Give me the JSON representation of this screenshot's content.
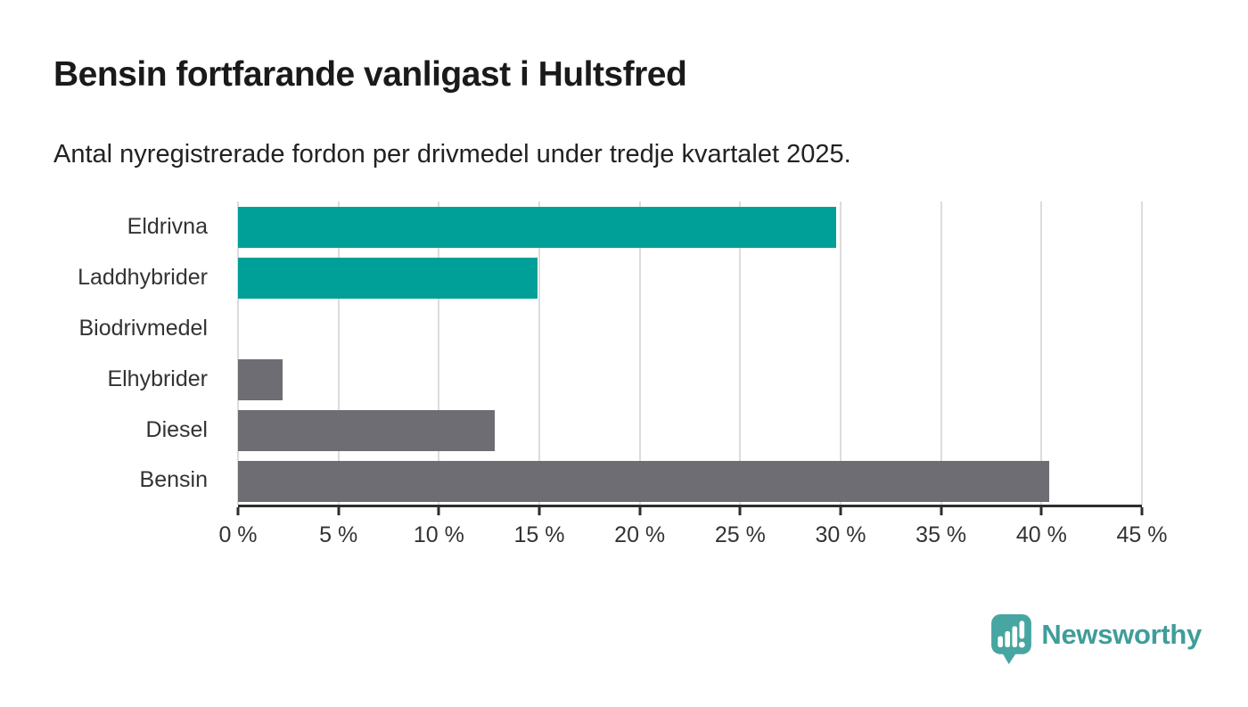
{
  "header": {
    "title": "Bensin fortfarande vanligast i Hultsfred",
    "subtitle": "Antal nyregistrerade fordon per drivmedel under tredje kvartalet 2025."
  },
  "chart_data": {
    "type": "bar",
    "orientation": "horizontal",
    "title": "Bensin fortfarande vanligast i Hultsfred",
    "subtitle": "Antal nyregistrerade fordon per drivmedel under tredje kvartalet 2025.",
    "xlabel": "",
    "ylabel": "",
    "categories": [
      "Eldrivna",
      "Laddhybrider",
      "Biodrivmedel",
      "Elhybrider",
      "Diesel",
      "Bensin"
    ],
    "values": [
      29.8,
      14.9,
      0,
      2.2,
      12.8,
      40.4
    ],
    "unit": "%",
    "bar_colors": [
      "#00a099",
      "#00a099",
      "#6e6d73",
      "#6e6d73",
      "#6e6d73",
      "#6e6d73"
    ],
    "xlim": [
      0,
      45
    ],
    "grid": true,
    "legend": "none",
    "x_ticks": [
      {
        "value": 0,
        "label": "0 %"
      },
      {
        "value": 5,
        "label": "5 %"
      },
      {
        "value": 10,
        "label": "10 %"
      },
      {
        "value": 15,
        "label": "15 %"
      },
      {
        "value": 20,
        "label": "20 %"
      },
      {
        "value": 25,
        "label": "25 %"
      },
      {
        "value": 30,
        "label": "30 %"
      },
      {
        "value": 35,
        "label": "35 %"
      },
      {
        "value": 40,
        "label": "40 %"
      },
      {
        "value": 45,
        "label": "45 %"
      }
    ]
  },
  "colors": {
    "accent_teal": "#00a099",
    "bar_gray": "#6e6d73",
    "gridline": "#dcdcdc",
    "axis": "#2d2d2d",
    "title_text": "#1a1a1a",
    "body_text": "#333333",
    "logo_icon": "#47a5a2",
    "logo_text": "#3f9d9a"
  },
  "footer": {
    "logo_text": "Newsworthy"
  }
}
